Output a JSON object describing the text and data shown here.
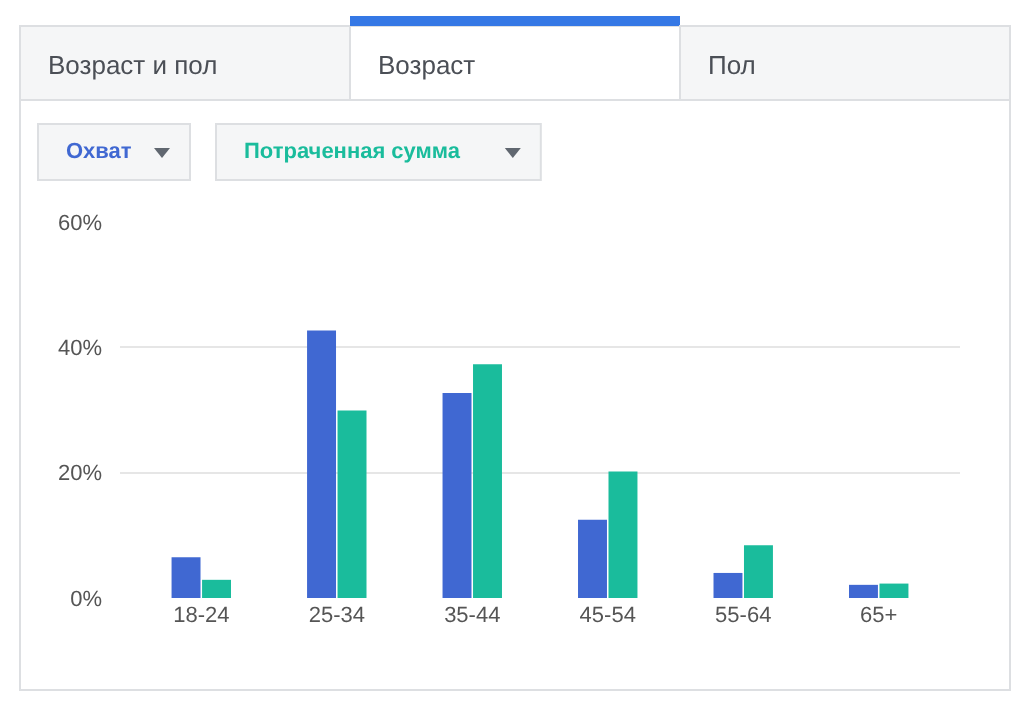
{
  "chart_data": {
    "type": "bar",
    "categories": [
      "18-24",
      "25-34",
      "35-44",
      "45-54",
      "55-64",
      "65+"
    ],
    "series": [
      {
        "name": "Охват",
        "color": "#4068d2",
        "values": [
          6.5,
          42.7,
          32.7,
          12.5,
          4.0,
          2.1
        ]
      },
      {
        "name": "Потраченная сумма",
        "color": "#1abc9c",
        "values": [
          2.9,
          29.9,
          37.3,
          20.2,
          8.4,
          2.3
        ]
      }
    ],
    "ylim": [
      0,
      60
    ],
    "yticks": [
      {
        "value": 0,
        "label": "0%"
      },
      {
        "value": 20,
        "label": "20%"
      },
      {
        "value": 40,
        "label": "40%"
      },
      {
        "value": 60,
        "label": "60%"
      }
    ],
    "grid": "y",
    "legend": "top left",
    "annotations": [
      "Возраст и пол",
      "Возраст",
      "Пол"
    ]
  }
}
